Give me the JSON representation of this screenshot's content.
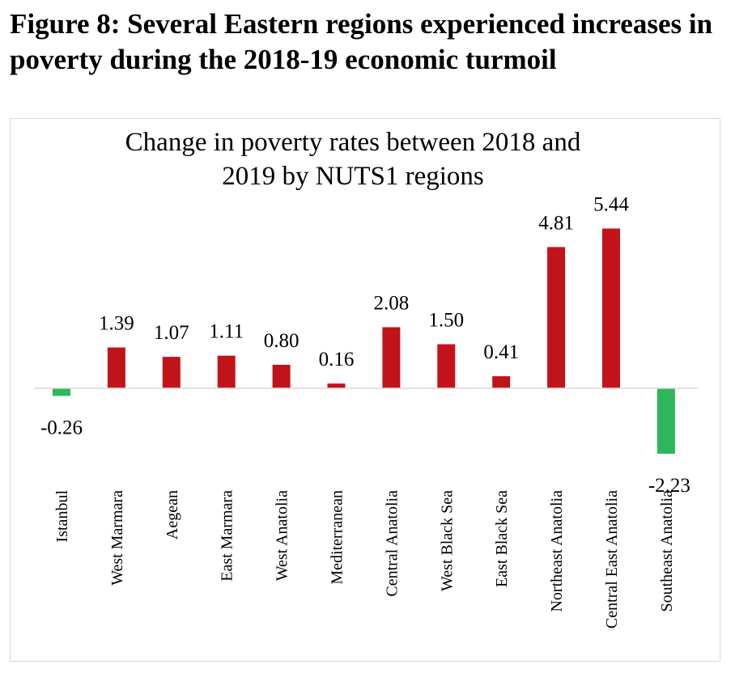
{
  "figure_title": "Figure 8: Several Eastern regions experienced increases in poverty during the 2018-19 economic turmoil",
  "chart_data": {
    "type": "bar",
    "title": "Change in poverty rates between 2018 and 2019 by NUTS1 regions",
    "title_lines": [
      "Change in poverty rates between 2018 and",
      "2019 by NUTS1 regions"
    ],
    "categories": [
      "Istanbul",
      "West Marmara",
      "Aegean",
      "East Marmara",
      "West Anatolia",
      "Mediterranean",
      "Central Anatolia",
      "West Black Sea",
      "East Black Sea",
      "Northeast Anatolia",
      "Central East Anatolia",
      "Southeast Anatolia"
    ],
    "values": [
      -0.26,
      1.39,
      1.07,
      1.11,
      0.8,
      0.16,
      2.08,
      1.5,
      0.41,
      4.81,
      5.44,
      -2.23
    ],
    "value_labels": [
      "-0.26",
      "1.39",
      "1.07",
      "1.11",
      "0.80",
      "0.16",
      "2.08",
      "1.50",
      "0.41",
      "4.81",
      "5.44",
      "-2.23"
    ],
    "colors": {
      "positive": "#c0141a",
      "negative": "#2db75a",
      "axis": "#d9d9d9"
    },
    "xlabel": "",
    "ylabel": "",
    "grid": false,
    "legend": "none"
  }
}
